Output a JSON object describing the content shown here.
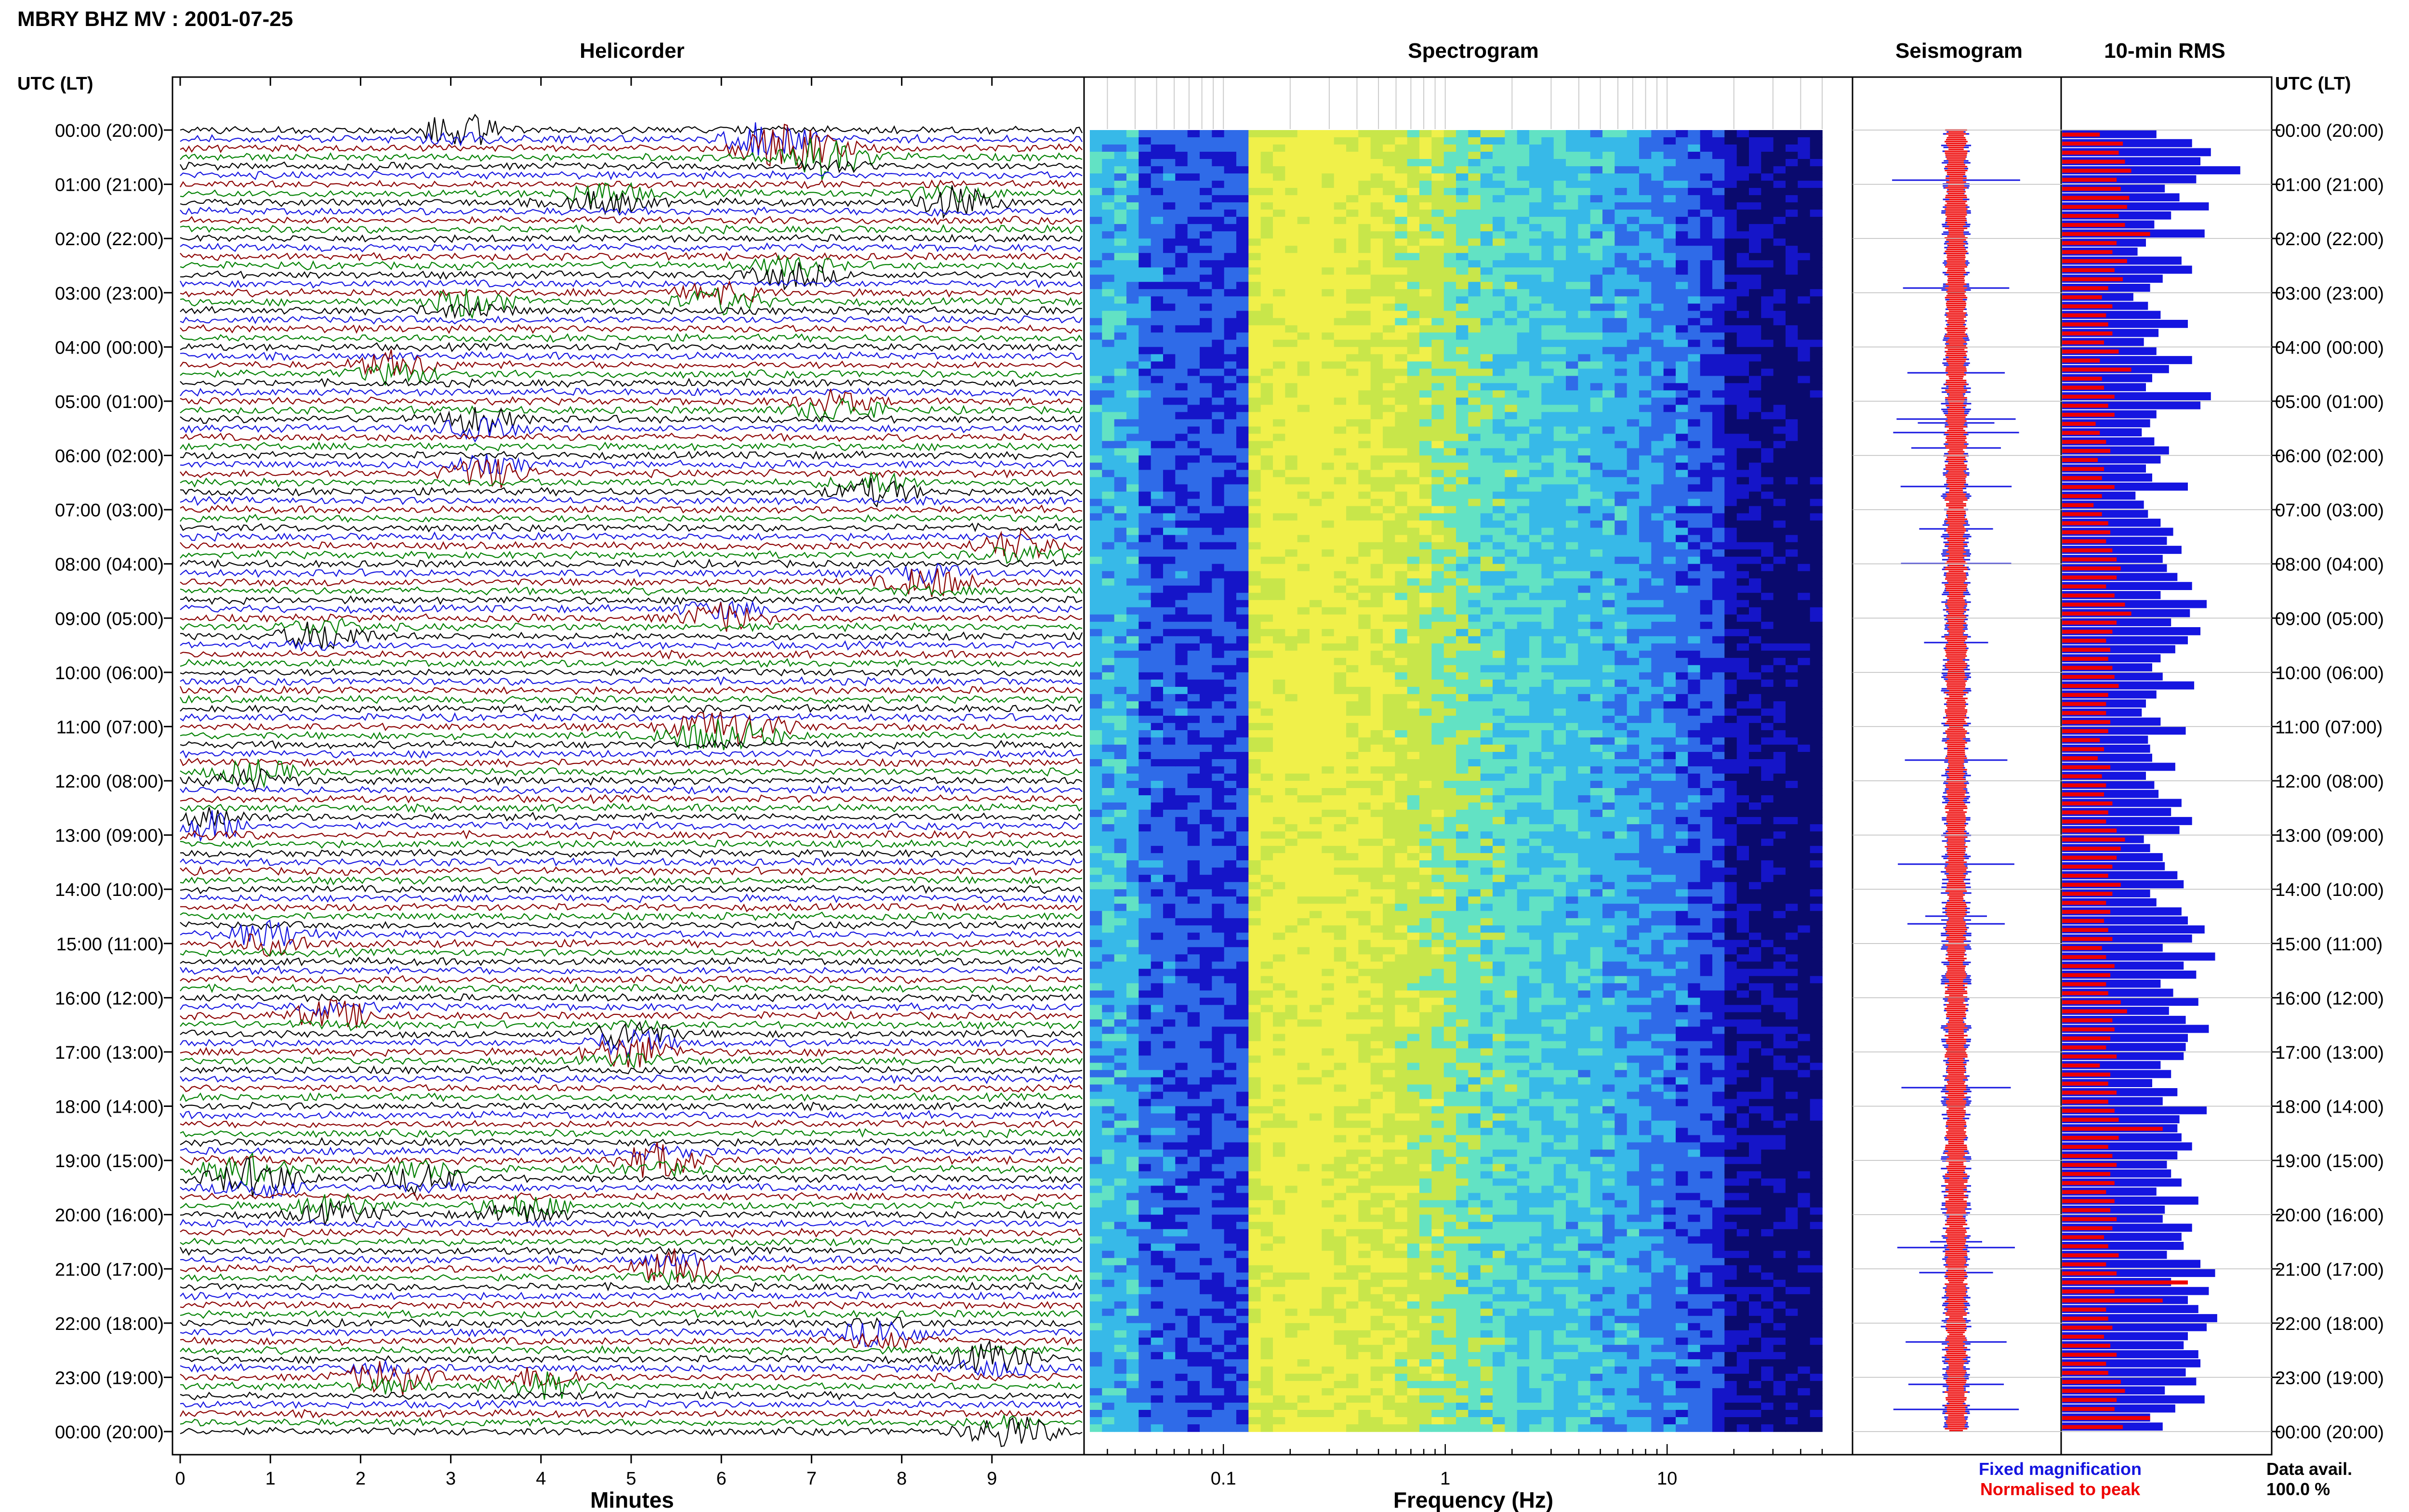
{
  "header": {
    "title": "MBRY BHZ MV : 2001-07-25",
    "axis_heading_left": "UTC (LT)",
    "axis_heading_right": "UTC (LT)"
  },
  "panels": {
    "helicorder": "Helicorder",
    "spectrogram": "Spectrogram",
    "seismogram": "Seismogram",
    "rms": "10-min RMS"
  },
  "time_labels": [
    "00:00 (20:00)",
    "01:00 (21:00)",
    "02:00 (22:00)",
    "03:00 (23:00)",
    "04:00 (00:00)",
    "05:00 (01:00)",
    "06:00 (02:00)",
    "07:00 (03:00)",
    "08:00 (04:00)",
    "09:00 (05:00)",
    "10:00 (06:00)",
    "11:00 (07:00)",
    "12:00 (08:00)",
    "13:00 (09:00)",
    "14:00 (10:00)",
    "15:00 (11:00)",
    "16:00 (12:00)",
    "17:00 (13:00)",
    "18:00 (14:00)",
    "19:00 (15:00)",
    "20:00 (16:00)",
    "21:00 (17:00)",
    "22:00 (18:00)",
    "23:00 (19:00)",
    "00:00 (20:00)"
  ],
  "legend": {
    "fixed": "Fixed magnification",
    "normalised": "Normalised to peak",
    "fixed_color": "#1515e0",
    "normalised_color": "#ee0000",
    "data_avail_label": "Data avail.",
    "data_avail_value": "100.0 %"
  },
  "chart_data": [
    {
      "type": "line",
      "panel": "Helicorder",
      "xlabel": "Minutes",
      "xticks": [
        "0",
        "1",
        "2",
        "3",
        "4",
        "5",
        "6",
        "7",
        "8",
        "9"
      ],
      "xlim": [
        0,
        10
      ],
      "rows_per_hour": 6,
      "hours": 24,
      "trace_colors": [
        "#000000",
        "#1515e0",
        "#8b0000",
        "#008000"
      ],
      "events": [
        {
          "hour": 0.0,
          "minute": 3.1,
          "color": "#000000"
        },
        {
          "hour": 0.2,
          "minute": 6.5,
          "color": "#1515e0"
        },
        {
          "hour": 0.35,
          "minute": 6.8,
          "color": "#008000"
        },
        {
          "hour": 0.5,
          "minute": 7.2,
          "color": "#8b0000"
        },
        {
          "hour": 1.25,
          "minute": 4.7,
          "color": "#8b0000"
        },
        {
          "hour": 1.3,
          "minute": 8.6,
          "color": "#1515e0"
        },
        {
          "hour": 2.6,
          "minute": 6.8,
          "color": "#000000"
        },
        {
          "hour": 3.2,
          "minute": 3.2,
          "color": "#000000"
        },
        {
          "hour": 3.1,
          "minute": 6.0,
          "color": "#008000"
        },
        {
          "hour": 4.4,
          "minute": 2.4,
          "color": "#008000"
        },
        {
          "hour": 5.4,
          "minute": 3.3,
          "color": "#8b0000"
        },
        {
          "hour": 5.1,
          "minute": 7.3,
          "color": "#008000"
        },
        {
          "hour": 6.3,
          "minute": 3.4,
          "color": "#1515e0"
        },
        {
          "hour": 6.6,
          "minute": 7.7,
          "color": "#000000"
        },
        {
          "hour": 7.7,
          "minute": 9.3,
          "color": "#008000"
        },
        {
          "hour": 8.3,
          "minute": 8.3,
          "color": "#1515e0"
        },
        {
          "hour": 8.95,
          "minute": 6.0,
          "color": "#008000"
        },
        {
          "hour": 9.3,
          "minute": 1.6,
          "color": "#000000"
        },
        {
          "hour": 11.1,
          "minute": 5.8,
          "color": "#000000"
        },
        {
          "hour": 11.05,
          "minute": 6.3,
          "color": "#008000"
        },
        {
          "hour": 11.9,
          "minute": 0.8,
          "color": "#000000"
        },
        {
          "hour": 12.8,
          "minute": 0.3,
          "color": "#1515e0"
        },
        {
          "hour": 14.9,
          "minute": 1.0,
          "color": "#000000"
        },
        {
          "hour": 16.3,
          "minute": 1.7,
          "color": "#1515e0"
        },
        {
          "hour": 16.7,
          "minute": 5.0,
          "color": "#1515e0"
        },
        {
          "hour": 17.0,
          "minute": 5.0,
          "color": "#008000"
        },
        {
          "hour": 19.2,
          "minute": 0.7,
          "color": "#8b0000"
        },
        {
          "hour": 19.4,
          "minute": 0.9,
          "color": "#008000"
        },
        {
          "hour": 19.3,
          "minute": 2.7,
          "color": "#000000"
        },
        {
          "hour": 19.0,
          "minute": 5.3,
          "color": "#008000"
        },
        {
          "hour": 19.9,
          "minute": 1.7,
          "color": "#1515e0"
        },
        {
          "hour": 19.9,
          "minute": 3.8,
          "color": "#000000"
        },
        {
          "hour": 21.0,
          "minute": 5.5,
          "color": "#008000"
        },
        {
          "hour": 22.2,
          "minute": 7.8,
          "color": "#008000"
        },
        {
          "hour": 22.7,
          "minute": 9.0,
          "color": "#000000"
        },
        {
          "hour": 23.0,
          "minute": 2.3,
          "color": "#1515e0"
        },
        {
          "hour": 23.1,
          "minute": 4.0,
          "color": "#008000"
        },
        {
          "hour": 24.0,
          "minute": 9.2,
          "color": "#008000"
        }
      ]
    },
    {
      "type": "heatmap",
      "panel": "Spectrogram",
      "xlabel": "Frequency (Hz)",
      "xscale": "log",
      "xlim": [
        0.025,
        50
      ],
      "xticks": [
        "0.1",
        "1",
        "10"
      ],
      "ylim_hours": [
        0,
        24
      ],
      "colormap": [
        "#ffffff",
        "#0a0a6e",
        "#1515c8",
        "#2f6be8",
        "#37b9e8",
        "#62e2c4",
        "#c8e64a",
        "#f0f04a"
      ]
    },
    {
      "type": "area",
      "panel": "Seismogram",
      "series": [
        {
          "name": "Fixed magnification",
          "color": "#1515e0"
        },
        {
          "name": "Normalised to peak",
          "color": "#ee0000"
        }
      ],
      "ylim_hours": [
        0,
        24
      ]
    },
    {
      "type": "bar",
      "panel": "10-min RMS",
      "orientation": "horizontal",
      "ylim_hours": [
        0,
        24
      ],
      "bins": 144,
      "series": [
        {
          "name": "Fixed magnification",
          "color": "#1515e0",
          "values": [
            0.45,
            0.62,
            0.71,
            0.66,
            0.85,
            0.64,
            0.49,
            0.56,
            0.7,
            0.52,
            0.44,
            0.68,
            0.4,
            0.36,
            0.57,
            0.62,
            0.48,
            0.42,
            0.34,
            0.41,
            0.47,
            0.6,
            0.46,
            0.39,
            0.45,
            0.62,
            0.51,
            0.43,
            0.4,
            0.71,
            0.66,
            0.45,
            0.42,
            0.38,
            0.44,
            0.51,
            0.47,
            0.4,
            0.43,
            0.6,
            0.35,
            0.39,
            0.41,
            0.47,
            0.53,
            0.5,
            0.57,
            0.48,
            0.5,
            0.55,
            0.62,
            0.47,
            0.69,
            0.61,
            0.52,
            0.66,
            0.6,
            0.54,
            0.47,
            0.43,
            0.48,
            0.63,
            0.45,
            0.4,
            0.38,
            0.47,
            0.59,
            0.41,
            0.42,
            0.43,
            0.54,
            0.4,
            0.44,
            0.46,
            0.57,
            0.52,
            0.62,
            0.56,
            0.39,
            0.42,
            0.48,
            0.49,
            0.55,
            0.58,
            0.42,
            0.45,
            0.57,
            0.6,
            0.68,
            0.62,
            0.48,
            0.73,
            0.58,
            0.64,
            0.47,
            0.53,
            0.65,
            0.51,
            0.59,
            0.7,
            0.6,
            0.59,
            0.58,
            0.47,
            0.52,
            0.43,
            0.55,
            0.48,
            0.69,
            0.56,
            0.55,
            0.57,
            0.62,
            0.55,
            0.5,
            0.52,
            0.57,
            0.45,
            0.65,
            0.49,
            0.48,
            0.62,
            0.57,
            0.58,
            0.5,
            0.66,
            0.73,
            0.52,
            0.7,
            0.6,
            0.65,
            0.74,
            0.69,
            0.6,
            0.58,
            0.65,
            0.66,
            0.59,
            0.64,
            0.49,
            0.68,
            0.54,
            0.42,
            0.48
          ]
        },
        {
          "name": "Normalised to peak",
          "color": "#ee0000",
          "values": [
            0.18,
            0.29,
            0.27,
            0.3,
            0.33,
            0.26,
            0.28,
            0.32,
            0.31,
            0.27,
            0.3,
            0.42,
            0.26,
            0.24,
            0.31,
            0.25,
            0.29,
            0.22,
            0.19,
            0.24,
            0.21,
            0.22,
            0.24,
            0.2,
            0.27,
            0.18,
            0.33,
            0.19,
            0.2,
            0.25,
            0.22,
            0.25,
            0.16,
            0.18,
            0.21,
            0.23,
            0.17,
            0.2,
            0.19,
            0.25,
            0.19,
            0.15,
            0.19,
            0.22,
            0.23,
            0.21,
            0.24,
            0.26,
            0.28,
            0.26,
            0.21,
            0.25,
            0.3,
            0.33,
            0.26,
            0.24,
            0.21,
            0.23,
            0.22,
            0.24,
            0.25,
            0.27,
            0.22,
            0.21,
            0.21,
            0.23,
            0.22,
            0.18,
            0.2,
            0.17,
            0.23,
            0.19,
            0.21,
            0.2,
            0.24,
            0.22,
            0.21,
            0.26,
            0.3,
            0.28,
            0.26,
            0.24,
            0.22,
            0.28,
            0.24,
            0.21,
            0.23,
            0.2,
            0.22,
            0.24,
            0.19,
            0.21,
            0.25,
            0.23,
            0.21,
            0.22,
            0.28,
            0.31,
            0.24,
            0.25,
            0.23,
            0.21,
            0.26,
            0.18,
            0.23,
            0.22,
            0.26,
            0.22,
            0.25,
            0.27,
            0.48,
            0.27,
            0.22,
            0.24,
            0.26,
            0.23,
            0.25,
            0.21,
            0.25,
            0.23,
            0.26,
            0.24,
            0.2,
            0.22,
            0.27,
            0.21,
            0.26,
            0.6,
            0.25,
            0.48,
            0.21,
            0.22,
            0.24,
            0.2,
            0.23,
            0.26,
            0.21,
            0.22,
            0.28,
            0.3,
            0.26,
            0.25,
            0.42,
            0.29
          ]
        }
      ]
    }
  ]
}
